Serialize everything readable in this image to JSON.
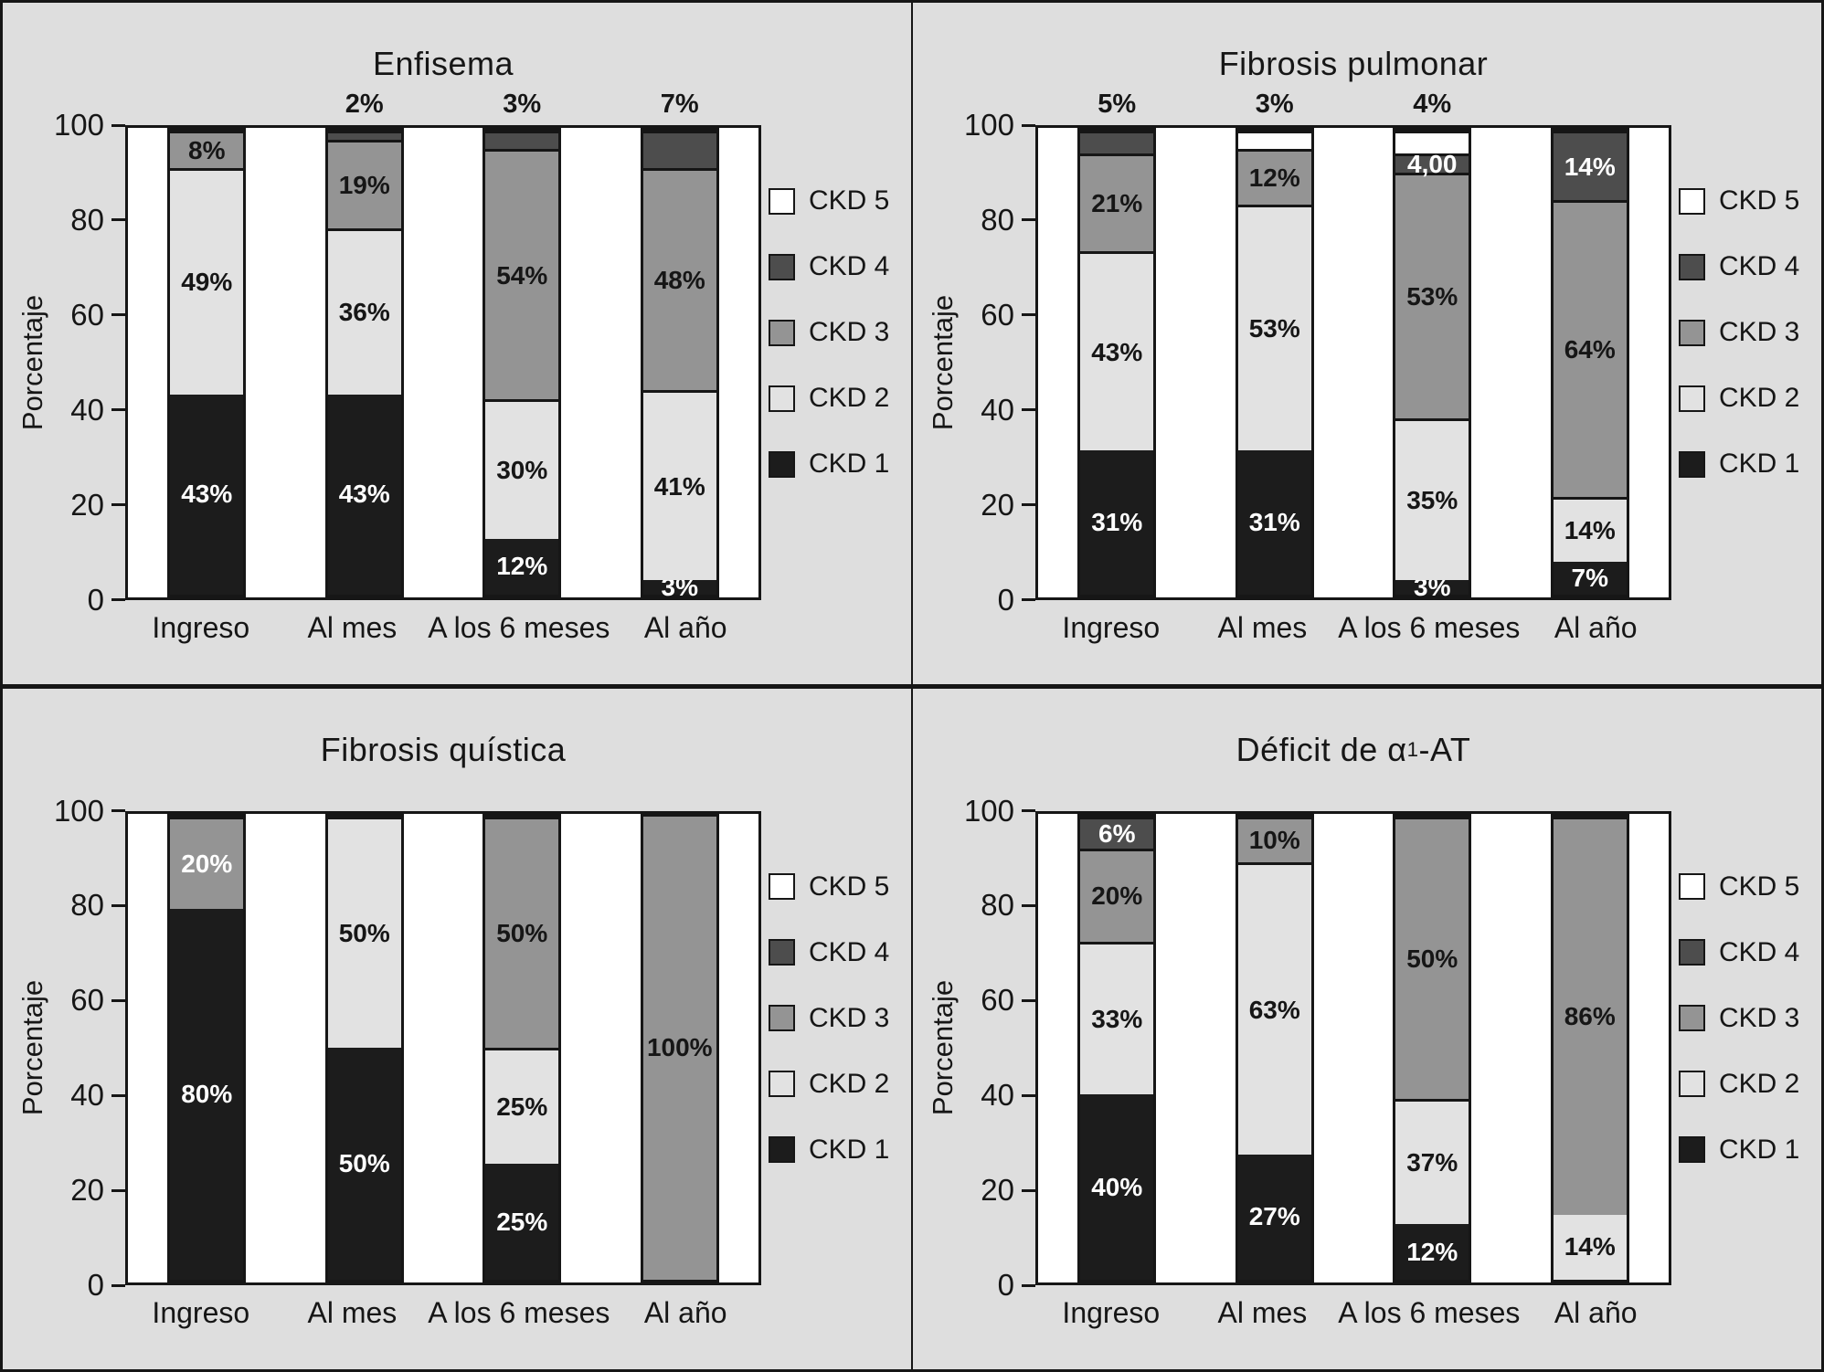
{
  "figure": {
    "background_color": "#dedede",
    "border_color": "#161616",
    "plot_background": "#ffffff",
    "ylabel": "Porcentaje",
    "yticks": [
      0,
      20,
      40,
      60,
      80,
      100
    ],
    "ylim": [
      0,
      100
    ],
    "grid": false,
    "legend_position": "right",
    "categories": [
      "Ingreso",
      "Al mes",
      "A los 6 meses",
      "Al año"
    ],
    "legend": [
      {
        "label": "CKD 5",
        "color": "#ffffff"
      },
      {
        "label": "CKD 4",
        "color": "#4d4d4d"
      },
      {
        "label": "CKD 3",
        "color": "#949494"
      },
      {
        "label": "CKD 2",
        "color": "#e2e2e2"
      },
      {
        "label": "CKD 1",
        "color": "#1c1c1c"
      }
    ],
    "label_colors": {
      "CKD 1": "#ffffff",
      "CKD 2": "#161616",
      "CKD 3": "#161616",
      "CKD 4": "#ffffff",
      "CKD 5": "#161616"
    }
  },
  "chart_data": [
    {
      "type": "bar",
      "stacked": true,
      "title": "Enfisema",
      "xlabel": "",
      "ylabel": "Porcentaje",
      "bars": [
        {
          "category": "Ingreso",
          "segments": [
            {
              "stage": "CKD 1",
              "value": 43,
              "label": "43%"
            },
            {
              "stage": "CKD 2",
              "value": 49,
              "label": "49%"
            },
            {
              "stage": "CKD 3",
              "value": 8,
              "label": "8%"
            }
          ]
        },
        {
          "category": "Al mes",
          "segments": [
            {
              "stage": "CKD 1",
              "value": 43,
              "label": "43%"
            },
            {
              "stage": "CKD 2",
              "value": 36,
              "label": "36%"
            },
            {
              "stage": "CKD 3",
              "value": 19,
              "label": "19%"
            },
            {
              "stage": "CKD 4",
              "value": 2,
              "label": "2%",
              "label_pos": "above"
            }
          ]
        },
        {
          "category": "A los 6 meses",
          "segments": [
            {
              "stage": "CKD 1",
              "value": 12,
              "label": "12%"
            },
            {
              "stage": "CKD 2",
              "value": 30,
              "label": "30%"
            },
            {
              "stage": "CKD 3",
              "value": 54,
              "label": "54%"
            },
            {
              "stage": "CKD 4",
              "value": 3,
              "label": "3%",
              "label_pos": "above"
            }
          ]
        },
        {
          "category": "Al año",
          "segments": [
            {
              "stage": "CKD 1",
              "value": 3,
              "label": "3%"
            },
            {
              "stage": "CKD 2",
              "value": 41,
              "label": "41%"
            },
            {
              "stage": "CKD 3",
              "value": 48,
              "label": "48%"
            },
            {
              "stage": "CKD 4",
              "value": 7,
              "label": "7%",
              "label_pos": "above"
            }
          ]
        }
      ]
    },
    {
      "type": "bar",
      "stacked": true,
      "title": "Fibrosis pulmonar",
      "xlabel": "",
      "ylabel": "Porcentaje",
      "bars": [
        {
          "category": "Ingreso",
          "segments": [
            {
              "stage": "CKD 1",
              "value": 31,
              "label": "31%"
            },
            {
              "stage": "CKD 2",
              "value": 43,
              "label": "43%"
            },
            {
              "stage": "CKD 3",
              "value": 21,
              "label": "21%"
            },
            {
              "stage": "CKD 4",
              "value": 5,
              "label": "5%",
              "label_pos": "above"
            }
          ]
        },
        {
          "category": "Al mes",
          "segments": [
            {
              "stage": "CKD 1",
              "value": 31,
              "label": "31%"
            },
            {
              "stage": "CKD 2",
              "value": 53,
              "label": "53%"
            },
            {
              "stage": "CKD 3",
              "value": 12,
              "label": "12%"
            },
            {
              "stage": "CKD 5",
              "value": 3,
              "label": "3%",
              "label_pos": "above"
            }
          ]
        },
        {
          "category": "A los 6 meses",
          "segments": [
            {
              "stage": "CKD 1",
              "value": 3,
              "label": "3%"
            },
            {
              "stage": "CKD 2",
              "value": 35,
              "label": "35%"
            },
            {
              "stage": "CKD 3",
              "value": 53,
              "label": "53%"
            },
            {
              "stage": "CKD 4",
              "value": 4,
              "label": "4,00"
            },
            {
              "stage": "CKD 5",
              "value": 4,
              "label": "4%",
              "label_pos": "above"
            }
          ]
        },
        {
          "category": "Al año",
          "segments": [
            {
              "stage": "CKD 1",
              "value": 7,
              "label": "7%"
            },
            {
              "stage": "CKD 2",
              "value": 14,
              "label": "14%"
            },
            {
              "stage": "CKD 3",
              "value": 64,
              "label": "64%"
            },
            {
              "stage": "CKD 4",
              "value": 14,
              "label": "14%"
            }
          ]
        }
      ]
    },
    {
      "type": "bar",
      "stacked": true,
      "title": "Fibrosis quística",
      "xlabel": "",
      "ylabel": "Porcentaje",
      "bars": [
        {
          "category": "Ingreso",
          "segments": [
            {
              "stage": "CKD 1",
              "value": 80,
              "label": "80%"
            },
            {
              "stage": "CKD 3",
              "value": 20,
              "label": "20%",
              "label_color": "#ffffff"
            }
          ]
        },
        {
          "category": "Al mes",
          "segments": [
            {
              "stage": "CKD 1",
              "value": 50,
              "label": "50%"
            },
            {
              "stage": "CKD 2",
              "value": 50,
              "label": "50%"
            }
          ]
        },
        {
          "category": "A los 6 meses",
          "segments": [
            {
              "stage": "CKD 1",
              "value": 25,
              "label": "25%"
            },
            {
              "stage": "CKD 2",
              "value": 25,
              "label": "25%"
            },
            {
              "stage": "CKD 3",
              "value": 50,
              "label": "50%"
            }
          ]
        },
        {
          "category": "Al año",
          "segments": [
            {
              "stage": "CKD 3",
              "value": 100,
              "label": "100%"
            }
          ]
        }
      ]
    },
    {
      "type": "bar",
      "stacked": true,
      "title": "Déficit de α1-AT",
      "title_parts": {
        "pre": "Déficit de α",
        "sub": "1",
        "post": "-AT"
      },
      "xlabel": "",
      "ylabel": "Porcentaje",
      "bars": [
        {
          "category": "Ingreso",
          "segments": [
            {
              "stage": "CKD 1",
              "value": 40,
              "label": "40%"
            },
            {
              "stage": "CKD 2",
              "value": 33,
              "label": "33%"
            },
            {
              "stage": "CKD 3",
              "value": 20,
              "label": "20%"
            },
            {
              "stage": "CKD 4",
              "value": 6,
              "label": "6%"
            }
          ]
        },
        {
          "category": "Al mes",
          "segments": [
            {
              "stage": "CKD 1",
              "value": 27,
              "label": "27%"
            },
            {
              "stage": "CKD 2",
              "value": 63,
              "label": "63%"
            },
            {
              "stage": "CKD 3",
              "value": 10,
              "label": "10%"
            }
          ]
        },
        {
          "category": "A los 6 meses",
          "segments": [
            {
              "stage": "CKD 1",
              "value": 12,
              "label": "12%"
            },
            {
              "stage": "CKD 2",
              "value": 37,
              "label": "37%",
              "draw": 27
            },
            {
              "stage": "CKD 3",
              "value": 50,
              "label": "50%",
              "draw": 61
            }
          ]
        },
        {
          "category": "Al año",
          "segments": [
            {
              "stage": "CKD 2",
              "value": 14,
              "label": "14%"
            },
            {
              "stage": "CKD 3",
              "value": 86,
              "label": "86%"
            }
          ]
        }
      ]
    }
  ]
}
